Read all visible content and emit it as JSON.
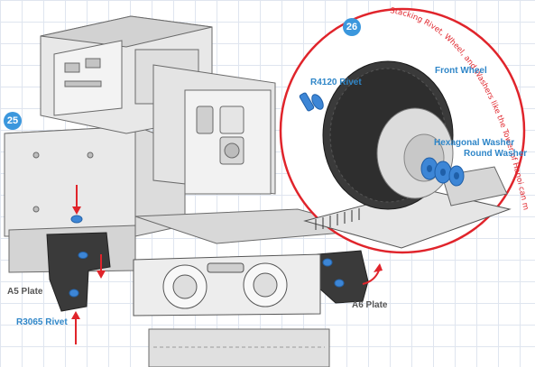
{
  "steps": {
    "step_25": "25",
    "step_26": "26"
  },
  "labels": {
    "a5_plate": "A5 Plate",
    "a6_plate": "A6 Plate",
    "r3065_rivet": "R3065 Rivet",
    "r4120_rivet": "R4120 Rivet",
    "front_wheel": "Front  Wheel",
    "hexagonal_washer": "Hexagonal Washer",
    "round_washer": "Round Washer"
  },
  "note": "Stacking Rivet, Wheel, and Washers like the Tower of Hanoi can make assembly easier!",
  "colors": {
    "accent_blue": "#3b97dd",
    "label_blue": "#2f86c8",
    "highlight_red": "#e0242b",
    "part_blue": "#3d86d6"
  }
}
